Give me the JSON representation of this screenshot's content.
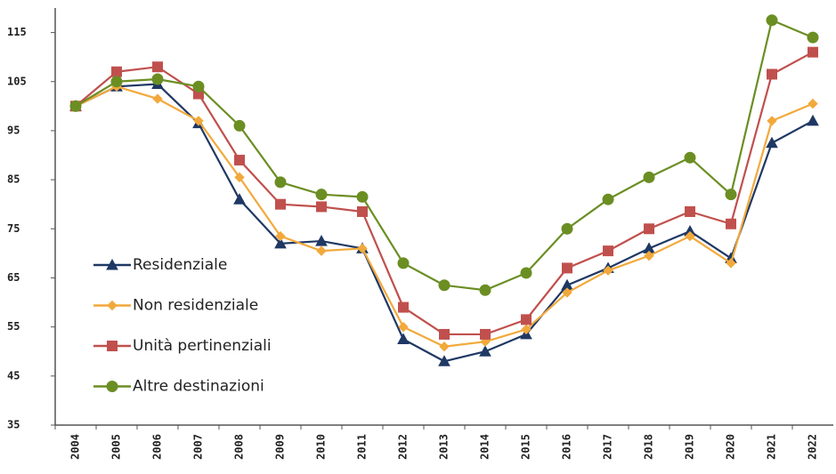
{
  "chart_data": {
    "type": "line",
    "categories": [
      "2004",
      "2005",
      "2006",
      "2007",
      "2008",
      "2009",
      "2010",
      "2011",
      "2012",
      "2013",
      "2014",
      "2015",
      "2016",
      "2017",
      "2018",
      "2019",
      "2020",
      "2021",
      "2022"
    ],
    "series": [
      {
        "name": "Residenziale",
        "color": "#1f3864",
        "marker": "triangle",
        "values": [
          100,
          104,
          104.5,
          96.5,
          81,
          72,
          72.5,
          71,
          52.5,
          48,
          50,
          53.5,
          63.5,
          67,
          71,
          74.5,
          69,
          92.5,
          97
        ]
      },
      {
        "name": "Non residenziale",
        "color": "#f2a93b",
        "marker": "diamond",
        "values": [
          100,
          104,
          101.5,
          97,
          85.5,
          73.5,
          70.5,
          71,
          55,
          51,
          52,
          54.5,
          62,
          66.5,
          69.5,
          73.5,
          68,
          97,
          100.5
        ]
      },
      {
        "name": "Unità pertinenziali",
        "color": "#c0504d",
        "marker": "square",
        "values": [
          100,
          107,
          108,
          102.5,
          89,
          80,
          79.5,
          78.5,
          59,
          53.5,
          53.5,
          56.5,
          67,
          70.5,
          75,
          78.5,
          76,
          106.5,
          111
        ]
      },
      {
        "name": "Altre destinazioni",
        "color": "#6b8e23",
        "marker": "circle",
        "values": [
          100,
          105,
          105.5,
          104,
          96,
          84.5,
          82,
          81.5,
          68,
          63.5,
          62.5,
          66,
          75,
          81,
          85.5,
          89.5,
          82,
          117.5,
          114
        ]
      }
    ],
    "ylim": [
      35,
      120
    ],
    "yticks": [
      35,
      45,
      55,
      65,
      75,
      85,
      95,
      105,
      115
    ],
    "grid": false,
    "legend": "left"
  }
}
